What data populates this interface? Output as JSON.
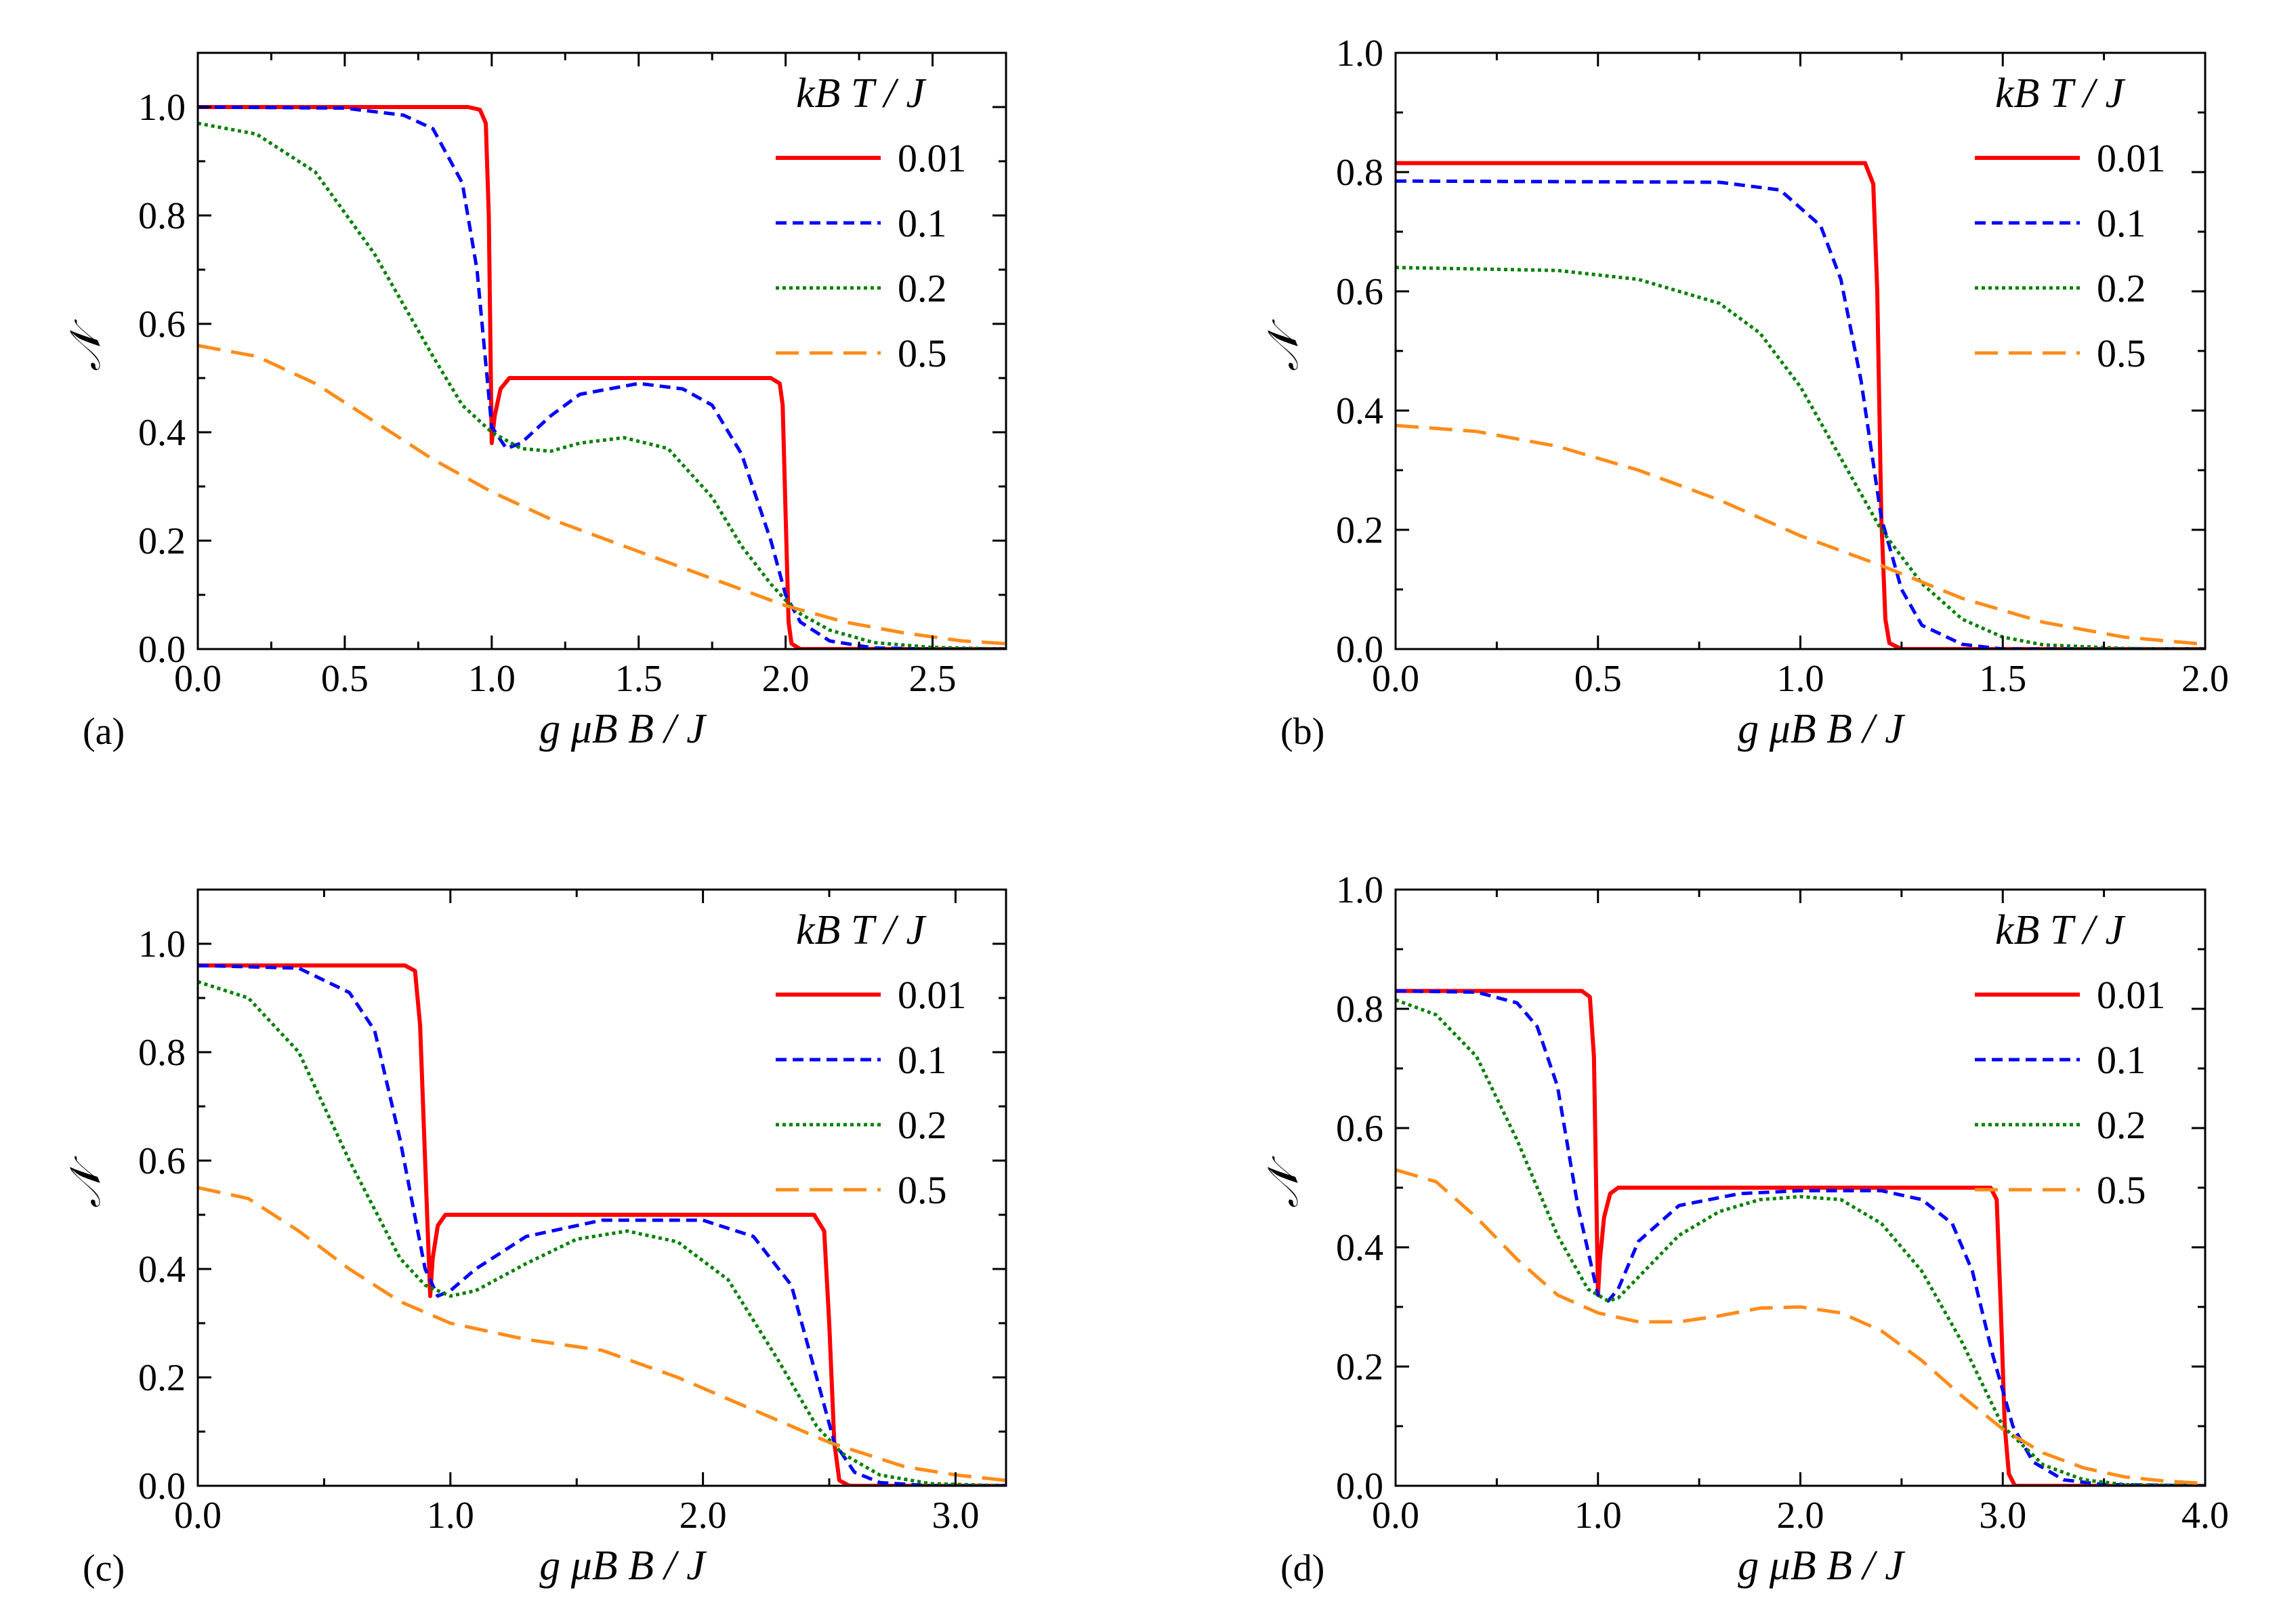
{
  "chart_data": [
    {
      "panel": "(a)",
      "type": "line",
      "xlabel": "g μB B / J",
      "ylabel": "𝒩",
      "xlim": [
        0,
        2.75
      ],
      "ylim": [
        0,
        1.1
      ],
      "xticks": [
        "0.0",
        "0.5",
        "1.0",
        "1.5",
        "2.0",
        "2.5"
      ],
      "yticks": [
        "0.0",
        "0.2",
        "0.4",
        "0.6",
        "0.8",
        "1.0"
      ],
      "legend_title": "kB T / J",
      "legend_position": "top-right",
      "series": [
        {
          "name": "0.01",
          "color": "#ff0000",
          "style": "solid",
          "x": [
            0,
            0.92,
            0.96,
            0.98,
            0.99,
            1.0,
            1.01,
            1.03,
            1.06,
            1.1,
            1.5,
            1.95,
            1.98,
            1.99,
            2.0,
            2.01,
            2.02,
            2.05,
            2.75
          ],
          "y": [
            1.0,
            1.0,
            0.995,
            0.97,
            0.8,
            0.38,
            0.43,
            0.48,
            0.5,
            0.5,
            0.5,
            0.5,
            0.49,
            0.45,
            0.25,
            0.05,
            0.01,
            0.0,
            0.0
          ]
        },
        {
          "name": "0.1",
          "color": "#0000ff",
          "style": "dashed",
          "x": [
            0,
            0.5,
            0.7,
            0.8,
            0.9,
            0.95,
            1.0,
            1.05,
            1.1,
            1.2,
            1.3,
            1.5,
            1.65,
            1.75,
            1.85,
            1.95,
            2.0,
            2.05,
            2.15,
            2.3,
            2.5,
            2.75
          ],
          "y": [
            1.0,
            0.998,
            0.985,
            0.96,
            0.86,
            0.7,
            0.41,
            0.37,
            0.38,
            0.43,
            0.47,
            0.49,
            0.48,
            0.45,
            0.36,
            0.2,
            0.1,
            0.05,
            0.015,
            0.002,
            0.0,
            0.0
          ]
        },
        {
          "name": "0.2",
          "color": "#008000",
          "style": "dotted",
          "x": [
            0,
            0.2,
            0.4,
            0.6,
            0.8,
            0.9,
            1.0,
            1.1,
            1.2,
            1.3,
            1.45,
            1.6,
            1.75,
            1.85,
            1.95,
            2.0,
            2.05,
            2.15,
            2.3,
            2.5,
            2.75
          ],
          "y": [
            0.97,
            0.95,
            0.88,
            0.73,
            0.54,
            0.45,
            0.4,
            0.37,
            0.365,
            0.38,
            0.39,
            0.37,
            0.28,
            0.19,
            0.12,
            0.09,
            0.065,
            0.035,
            0.012,
            0.003,
            0.0
          ]
        },
        {
          "name": "0.5",
          "color": "#ff8c1a",
          "style": "longdash",
          "x": [
            0,
            0.2,
            0.4,
            0.6,
            0.8,
            1.0,
            1.2,
            1.4,
            1.6,
            1.8,
            2.0,
            2.2,
            2.4,
            2.6,
            2.75
          ],
          "y": [
            0.56,
            0.54,
            0.49,
            0.42,
            0.35,
            0.29,
            0.24,
            0.2,
            0.16,
            0.12,
            0.08,
            0.05,
            0.03,
            0.015,
            0.01
          ]
        }
      ]
    },
    {
      "panel": "(b)",
      "type": "line",
      "xlabel": "g μB B / J",
      "ylabel": "𝒩",
      "xlim": [
        0,
        2.0
      ],
      "ylim": [
        0,
        1.0
      ],
      "xticks": [
        "0.0",
        "0.5",
        "1.0",
        "1.5",
        "2.0"
      ],
      "yticks": [
        "0.0",
        "0.2",
        "0.4",
        "0.6",
        "0.8",
        "1.0"
      ],
      "legend_title": "kB T / J",
      "legend_position": "top-right",
      "series": [
        {
          "name": "0.01",
          "color": "#ff0000",
          "style": "solid",
          "x": [
            0,
            1.16,
            1.18,
            1.19,
            1.2,
            1.21,
            1.22,
            1.25,
            2.0
          ],
          "y": [
            0.815,
            0.815,
            0.78,
            0.6,
            0.22,
            0.05,
            0.01,
            0.0,
            0.0
          ]
        },
        {
          "name": "0.1",
          "color": "#0000ff",
          "style": "dashed",
          "x": [
            0,
            0.8,
            0.95,
            1.05,
            1.1,
            1.15,
            1.2,
            1.25,
            1.3,
            1.4,
            1.5,
            2.0
          ],
          "y": [
            0.785,
            0.783,
            0.77,
            0.71,
            0.62,
            0.45,
            0.22,
            0.1,
            0.04,
            0.008,
            0.0,
            0.0
          ]
        },
        {
          "name": "0.2",
          "color": "#008000",
          "style": "dotted",
          "x": [
            0,
            0.4,
            0.6,
            0.8,
            0.9,
            1.0,
            1.1,
            1.2,
            1.3,
            1.4,
            1.5,
            1.6,
            1.8,
            2.0
          ],
          "y": [
            0.64,
            0.635,
            0.62,
            0.58,
            0.53,
            0.44,
            0.32,
            0.2,
            0.11,
            0.05,
            0.02,
            0.007,
            0.001,
            0.0
          ]
        },
        {
          "name": "0.5",
          "color": "#ff8c1a",
          "style": "longdash",
          "x": [
            0,
            0.2,
            0.4,
            0.6,
            0.8,
            1.0,
            1.2,
            1.4,
            1.6,
            1.8,
            2.0
          ],
          "y": [
            0.375,
            0.365,
            0.34,
            0.3,
            0.25,
            0.19,
            0.14,
            0.085,
            0.045,
            0.02,
            0.008
          ]
        }
      ]
    },
    {
      "panel": "(c)",
      "type": "line",
      "xlabel": "g μB B / J",
      "ylabel": "𝒩",
      "xlim": [
        0,
        3.2
      ],
      "ylim": [
        0,
        1.1
      ],
      "xticks": [
        "0.0",
        "1.0",
        "2.0",
        "3.0"
      ],
      "yticks": [
        "0.0",
        "0.2",
        "0.4",
        "0.6",
        "0.8",
        "1.0"
      ],
      "legend_title": "kB T / J",
      "legend_position": "top-right",
      "series": [
        {
          "name": "0.01",
          "color": "#ff0000",
          "style": "solid",
          "x": [
            0,
            0.82,
            0.86,
            0.88,
            0.9,
            0.92,
            0.93,
            0.95,
            0.98,
            1.05,
            2.0,
            2.44,
            2.48,
            2.5,
            2.52,
            2.54,
            2.58,
            3.2
          ],
          "y": [
            0.96,
            0.96,
            0.95,
            0.85,
            0.6,
            0.35,
            0.42,
            0.48,
            0.5,
            0.5,
            0.5,
            0.5,
            0.47,
            0.3,
            0.08,
            0.01,
            0.0,
            0.0
          ]
        },
        {
          "name": "0.1",
          "color": "#0000ff",
          "style": "dashed",
          "x": [
            0,
            0.4,
            0.6,
            0.7,
            0.8,
            0.9,
            0.95,
            1.0,
            1.1,
            1.3,
            1.6,
            2.0,
            2.2,
            2.35,
            2.45,
            2.52,
            2.6,
            2.7,
            2.9,
            3.2
          ],
          "y": [
            0.96,
            0.955,
            0.91,
            0.84,
            0.64,
            0.4,
            0.35,
            0.36,
            0.4,
            0.46,
            0.49,
            0.49,
            0.46,
            0.37,
            0.2,
            0.08,
            0.025,
            0.006,
            0.0,
            0.0
          ]
        },
        {
          "name": "0.2",
          "color": "#008000",
          "style": "dotted",
          "x": [
            0,
            0.2,
            0.4,
            0.6,
            0.8,
            0.9,
            1.0,
            1.1,
            1.3,
            1.5,
            1.7,
            1.9,
            2.1,
            2.3,
            2.45,
            2.55,
            2.7,
            2.9,
            3.2
          ],
          "y": [
            0.93,
            0.9,
            0.8,
            0.6,
            0.42,
            0.37,
            0.35,
            0.36,
            0.41,
            0.455,
            0.47,
            0.45,
            0.38,
            0.23,
            0.11,
            0.06,
            0.02,
            0.004,
            0.0
          ]
        },
        {
          "name": "0.5",
          "color": "#ff8c1a",
          "style": "longdash",
          "x": [
            0,
            0.2,
            0.4,
            0.6,
            0.8,
            1.0,
            1.3,
            1.6,
            1.9,
            2.2,
            2.5,
            2.8,
            3.0,
            3.2
          ],
          "y": [
            0.55,
            0.53,
            0.47,
            0.4,
            0.34,
            0.3,
            0.27,
            0.25,
            0.2,
            0.14,
            0.08,
            0.035,
            0.02,
            0.01
          ]
        }
      ]
    },
    {
      "panel": "(d)",
      "type": "line",
      "xlabel": "g μB B / J",
      "ylabel": "𝒩",
      "xlim": [
        0,
        4.0
      ],
      "ylim": [
        0,
        1.0
      ],
      "xticks": [
        "0.0",
        "1.0",
        "2.0",
        "3.0",
        "4.0"
      ],
      "yticks": [
        "0.0",
        "0.2",
        "0.4",
        "0.6",
        "0.8",
        "1.0"
      ],
      "legend_title": "kB T / J",
      "legend_position": "top-right",
      "series": [
        {
          "name": "0.01",
          "color": "#ff0000",
          "style": "solid",
          "x": [
            0,
            0.92,
            0.96,
            0.98,
            1.0,
            1.01,
            1.03,
            1.06,
            1.1,
            2.0,
            2.94,
            2.97,
            2.99,
            3.01,
            3.03,
            3.06,
            4.0
          ],
          "y": [
            0.83,
            0.83,
            0.82,
            0.72,
            0.32,
            0.38,
            0.45,
            0.49,
            0.5,
            0.5,
            0.5,
            0.48,
            0.3,
            0.1,
            0.02,
            0.0,
            0.0
          ]
        },
        {
          "name": "0.1",
          "color": "#0000ff",
          "style": "dashed",
          "x": [
            0,
            0.4,
            0.6,
            0.7,
            0.8,
            0.9,
            1.0,
            1.05,
            1.1,
            1.2,
            1.4,
            1.7,
            2.0,
            2.4,
            2.6,
            2.75,
            2.85,
            2.95,
            3.05,
            3.15,
            3.3,
            3.5,
            4.0
          ],
          "y": [
            0.83,
            0.828,
            0.81,
            0.77,
            0.67,
            0.47,
            0.32,
            0.31,
            0.33,
            0.41,
            0.47,
            0.49,
            0.495,
            0.495,
            0.48,
            0.44,
            0.36,
            0.22,
            0.1,
            0.04,
            0.01,
            0.002,
            0.0
          ]
        },
        {
          "name": "0.2",
          "color": "#008000",
          "style": "dotted",
          "x": [
            0,
            0.2,
            0.4,
            0.6,
            0.8,
            0.95,
            1.05,
            1.1,
            1.2,
            1.4,
            1.6,
            1.8,
            2.0,
            2.2,
            2.4,
            2.6,
            2.8,
            3.0,
            3.2,
            3.4,
            3.6,
            4.0
          ],
          "y": [
            0.815,
            0.79,
            0.72,
            0.58,
            0.42,
            0.33,
            0.31,
            0.315,
            0.35,
            0.42,
            0.46,
            0.48,
            0.485,
            0.48,
            0.44,
            0.36,
            0.24,
            0.1,
            0.035,
            0.01,
            0.002,
            0.0
          ]
        },
        {
          "name": "0.5",
          "color": "#ff8c1a",
          "style": "longdash",
          "x": [
            0,
            0.2,
            0.4,
            0.6,
            0.8,
            1.0,
            1.2,
            1.4,
            1.6,
            1.8,
            2.0,
            2.2,
            2.4,
            2.6,
            2.8,
            3.0,
            3.2,
            3.4,
            3.6,
            3.8,
            4.0
          ],
          "y": [
            0.53,
            0.51,
            0.45,
            0.38,
            0.32,
            0.29,
            0.275,
            0.275,
            0.285,
            0.298,
            0.3,
            0.29,
            0.26,
            0.21,
            0.15,
            0.095,
            0.055,
            0.03,
            0.015,
            0.008,
            0.004
          ]
        }
      ]
    }
  ]
}
